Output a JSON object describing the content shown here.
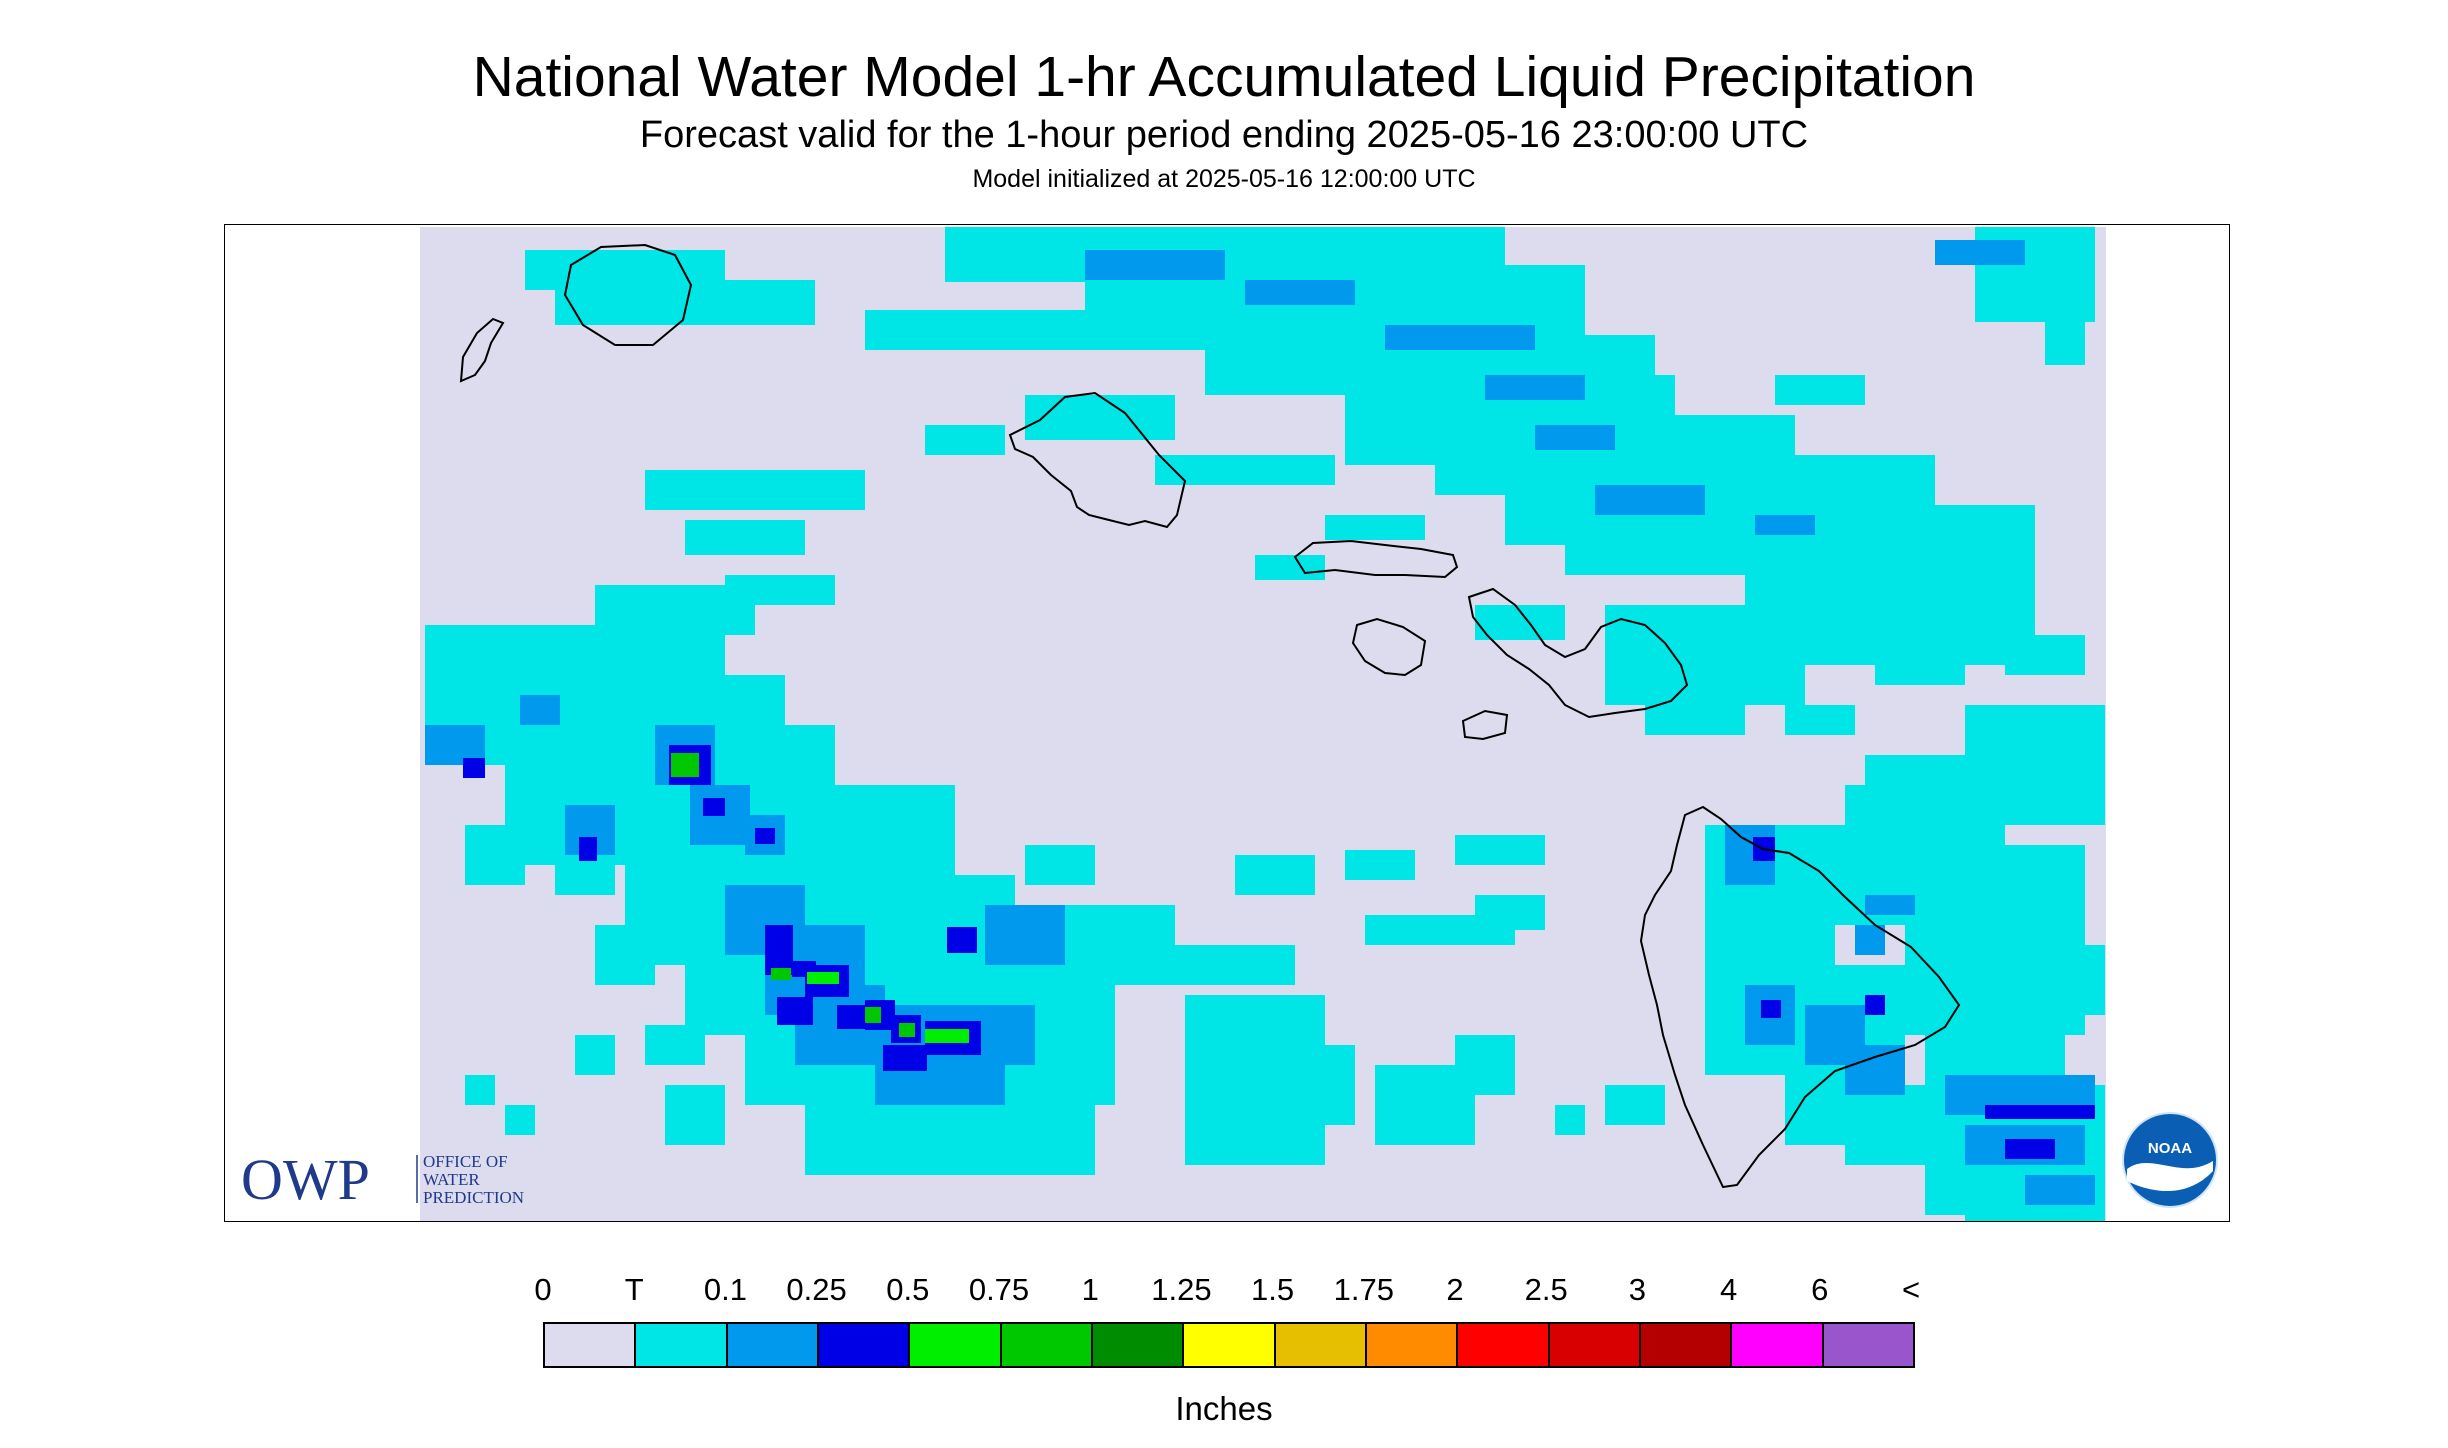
{
  "header": {
    "title": "National Water Model 1-hr Accumulated Liquid Precipitation",
    "subtitle": "Forecast valid for the 1-hour period ending 2025-05-16 23:00:00 UTC",
    "init_line": "Model initialized at 2025-05-16 12:00:00 UTC"
  },
  "map": {
    "background_color": "#dcdcee",
    "coastline_color": "#000000"
  },
  "logos": {
    "owp": {
      "mark": "OWP",
      "line1": "OFFICE OF",
      "line2": "WATER",
      "line3": "PREDICTION",
      "color": "#1f3a8a"
    },
    "noaa": {
      "text": "NOAA",
      "color": "#0a5fb4"
    }
  },
  "legend": {
    "labels": [
      "0",
      "T",
      "0.1",
      "0.25",
      "0.5",
      "0.75",
      "1",
      "1.25",
      "1.5",
      "1.75",
      "2",
      "2.5",
      "3",
      "4",
      "6",
      "<"
    ],
    "colors": [
      "#dcdcee",
      "#00e6e6",
      "#0099ee",
      "#0000e6",
      "#00ee00",
      "#00c800",
      "#008c00",
      "#ffff00",
      "#e6c000",
      "#ff8c00",
      "#ff0000",
      "#d80000",
      "#b40000",
      "#ff00ff",
      "#9955cc"
    ],
    "units": "Inches"
  }
}
